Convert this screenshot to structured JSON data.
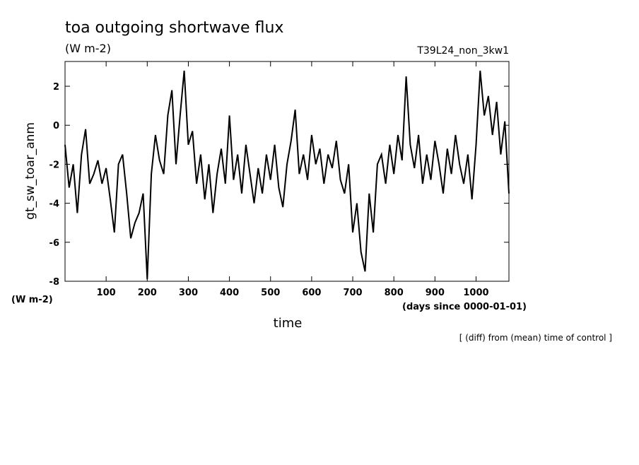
{
  "chart_data": {
    "type": "line",
    "title": "toa outgoing shortwave flux",
    "subtitle": "(W m-2)",
    "run_label": "T39L24_non_3kw1",
    "y_label": "gt_sw_toar_anm",
    "y_unit": "(W m-2)",
    "x_label": "time",
    "x_unit": "(days since 0000-01-01)",
    "note": "[ (diff) from (mean) time of control ]",
    "xlim": [
      0,
      1080
    ],
    "ylim": [
      -8,
      3.27
    ],
    "xticks": [
      100,
      200,
      300,
      400,
      500,
      600,
      700,
      800,
      900,
      1000
    ],
    "yticks": [
      -8,
      -6,
      -4,
      -2,
      0,
      2
    ],
    "color": "#000000",
    "x": [
      0,
      10,
      20,
      30,
      40,
      50,
      60,
      70,
      80,
      90,
      100,
      110,
      120,
      130,
      140,
      150,
      160,
      170,
      180,
      190,
      200,
      210,
      220,
      230,
      240,
      250,
      260,
      270,
      280,
      290,
      300,
      310,
      320,
      330,
      340,
      350,
      360,
      370,
      380,
      390,
      400,
      410,
      420,
      430,
      440,
      450,
      460,
      470,
      480,
      490,
      500,
      510,
      520,
      530,
      540,
      550,
      560,
      570,
      580,
      590,
      600,
      610,
      620,
      630,
      640,
      650,
      660,
      670,
      680,
      690,
      700,
      710,
      720,
      730,
      740,
      750,
      760,
      770,
      780,
      790,
      800,
      810,
      820,
      830,
      840,
      850,
      860,
      870,
      880,
      890,
      900,
      910,
      920,
      930,
      940,
      950,
      960,
      970,
      980,
      990,
      1000,
      1010,
      1020,
      1030,
      1040,
      1050,
      1060,
      1070,
      1080
    ],
    "values": [
      -1.0,
      -3.2,
      -2.0,
      -4.5,
      -1.5,
      -0.2,
      -3.0,
      -2.5,
      -1.8,
      -3.0,
      -2.2,
      -3.8,
      -5.5,
      -2.0,
      -1.5,
      -3.5,
      -5.8,
      -5.0,
      -4.5,
      -3.5,
      -7.9,
      -2.5,
      -0.5,
      -1.8,
      -2.5,
      0.5,
      1.8,
      -2.0,
      0.5,
      2.8,
      -1.0,
      -0.3,
      -3.0,
      -1.5,
      -3.8,
      -2.0,
      -4.5,
      -2.5,
      -1.2,
      -3.0,
      0.5,
      -2.8,
      -1.5,
      -3.5,
      -1.0,
      -2.5,
      -4.0,
      -2.2,
      -3.5,
      -1.5,
      -2.8,
      -1.0,
      -3.2,
      -4.2,
      -2.0,
      -0.8,
      0.8,
      -2.5,
      -1.5,
      -2.8,
      -0.5,
      -2.0,
      -1.2,
      -3.0,
      -1.5,
      -2.2,
      -0.8,
      -2.8,
      -3.5,
      -2.0,
      -5.5,
      -4.0,
      -6.5,
      -7.5,
      -3.5,
      -5.5,
      -2.0,
      -1.5,
      -3.0,
      -1.0,
      -2.5,
      -0.5,
      -1.8,
      2.5,
      -1.0,
      -2.2,
      -0.5,
      -3.0,
      -1.5,
      -2.8,
      -0.8,
      -2.0,
      -3.5,
      -1.2,
      -2.5,
      -0.5,
      -2.0,
      -3.0,
      -1.5,
      -3.8,
      -1.0,
      2.8,
      0.5,
      1.5,
      -0.5,
      1.2,
      -1.5,
      0.2,
      -3.5
    ]
  }
}
